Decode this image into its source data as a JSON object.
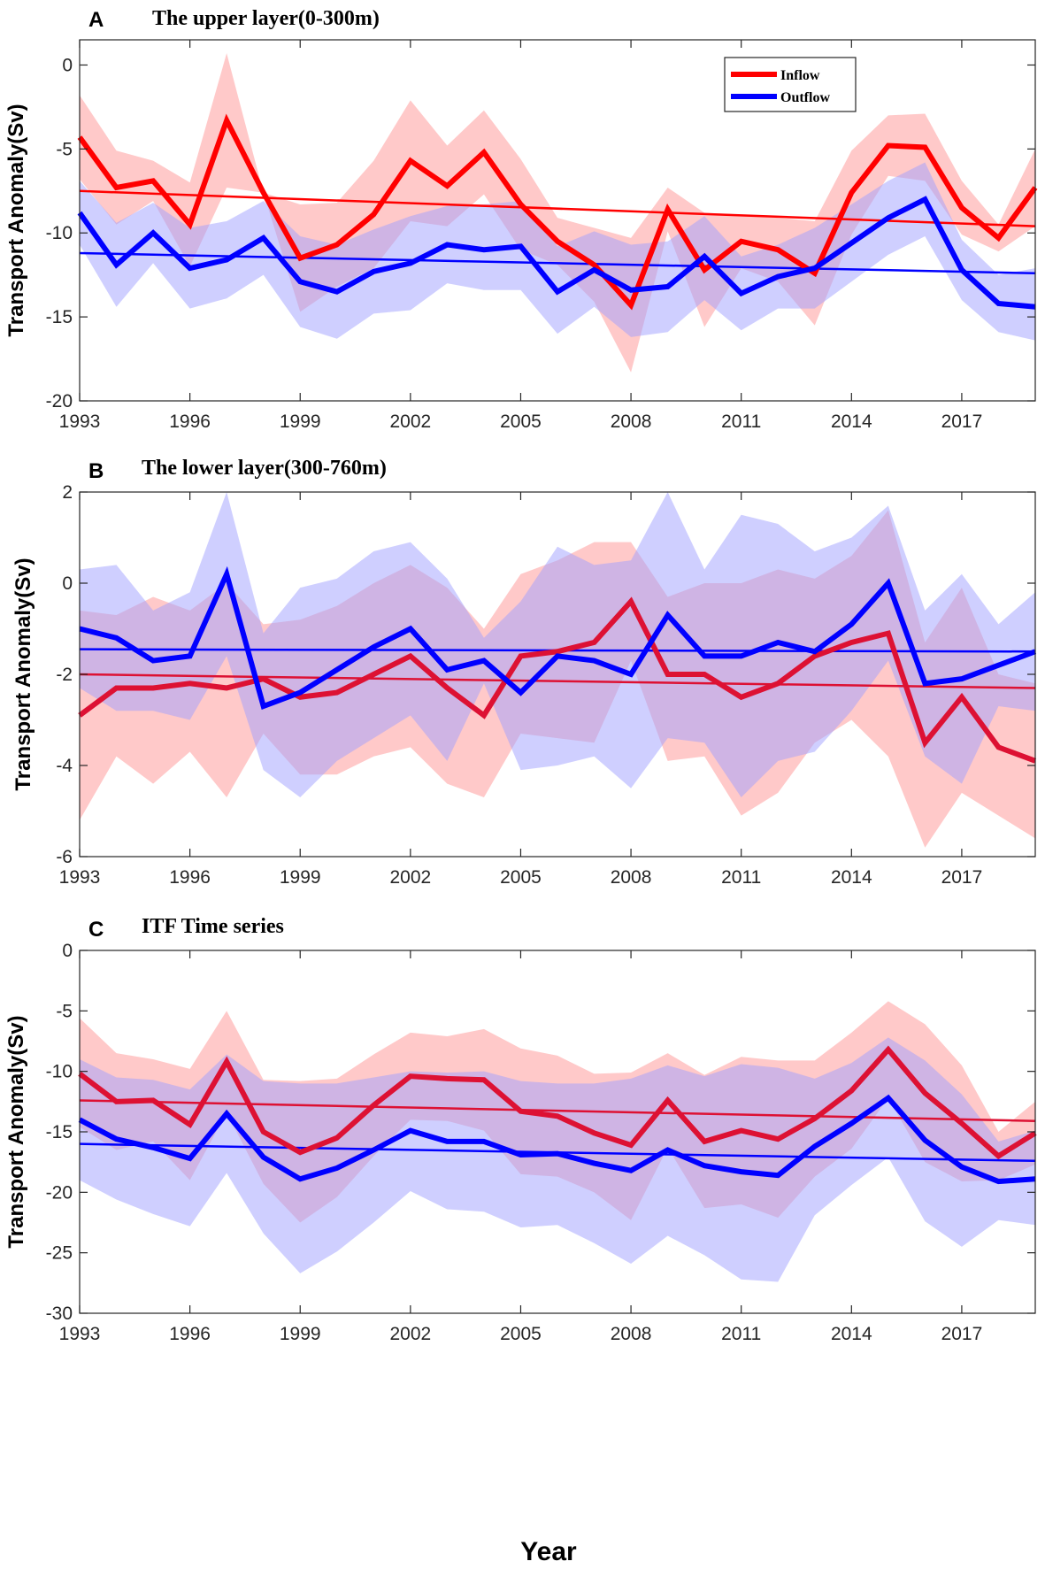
{
  "figure": {
    "xlabel": "Year",
    "colors": {
      "inflow": "#ff0000",
      "outflow": "#0000ff",
      "band_inflow": "#ff9c9c",
      "band_outflow": "#a0a0ff"
    }
  },
  "legend": {
    "inflow": "Inflow",
    "outflow": "Outflow"
  },
  "chart_data": [
    {
      "type": "line",
      "letter": "A",
      "title": "The  upper layer(0-300m)",
      "ylabel": "Transport Anomaly(Sv)",
      "xlim": [
        1993,
        2019
      ],
      "ylim": [
        -20,
        1.5
      ],
      "yticks": [
        0,
        -5,
        -10,
        -15,
        -20
      ],
      "xticks": [
        1993,
        1996,
        1999,
        2002,
        2005,
        2008,
        2011,
        2014,
        2017
      ],
      "x": [
        1993,
        1994,
        1995,
        1996,
        1997,
        1998,
        1999,
        2000,
        2001,
        2002,
        2003,
        2004,
        2005,
        2006,
        2007,
        2008,
        2009,
        2010,
        2011,
        2012,
        2013,
        2014,
        2015,
        2016,
        2017,
        2018,
        2019
      ],
      "series": [
        {
          "name": "Inflow",
          "color": "#ff0000",
          "values": [
            -4.3,
            -7.3,
            -6.9,
            -9.5,
            -3.3,
            -7.6,
            -11.5,
            -10.7,
            -8.9,
            -5.7,
            -7.2,
            -5.2,
            -8.3,
            -10.5,
            -11.9,
            -14.3,
            -8.6,
            -12.2,
            -10.5,
            -11.0,
            -12.4,
            -7.6,
            -4.8,
            -4.9,
            -8.5,
            -10.3,
            -7.3
          ],
          "upper": [
            -1.8,
            -5.1,
            -5.7,
            -7.0,
            0.7,
            -7.6,
            -8.3,
            -8.2,
            -5.7,
            -2.1,
            -4.8,
            -2.7,
            -5.6,
            -9.1,
            -9.7,
            -10.3,
            -7.3,
            -8.8,
            -8.9,
            -9.1,
            -9.3,
            -5.1,
            -3.0,
            -2.9,
            -6.9,
            -9.5,
            -5.0
          ],
          "lower": [
            -6.8,
            -9.5,
            -8.1,
            -12.0,
            -7.3,
            -7.6,
            -14.7,
            -13.2,
            -12.1,
            -9.3,
            -9.6,
            -7.7,
            -11.0,
            -11.9,
            -14.1,
            -18.3,
            -9.9,
            -15.6,
            -12.1,
            -12.9,
            -15.5,
            -10.1,
            -6.6,
            -6.9,
            -10.1,
            -11.1,
            -9.6
          ],
          "trend": [
            -7.5,
            -9.6
          ]
        },
        {
          "name": "Outflow",
          "color": "#0000ff",
          "values": [
            -8.8,
            -11.9,
            -10.0,
            -12.1,
            -11.6,
            -10.3,
            -12.9,
            -13.5,
            -12.3,
            -11.8,
            -10.7,
            -11.0,
            -10.8,
            -13.5,
            -12.2,
            -13.4,
            -13.2,
            -11.4,
            -13.6,
            -12.6,
            -12.1,
            -10.6,
            -9.1,
            -8.0,
            -12.2,
            -14.2,
            -14.4
          ],
          "upper": [
            -6.9,
            -9.4,
            -8.2,
            -9.7,
            -9.3,
            -8.1,
            -10.2,
            -10.7,
            -9.8,
            -9.0,
            -8.4,
            -8.3,
            -8.1,
            -10.8,
            -9.9,
            -10.7,
            -10.5,
            -9.0,
            -11.4,
            -10.7,
            -9.7,
            -8.3,
            -6.9,
            -5.8,
            -10.4,
            -12.5,
            -12.1
          ],
          "lower": [
            -10.7,
            -14.4,
            -11.8,
            -14.5,
            -13.9,
            -12.5,
            -15.6,
            -16.3,
            -14.8,
            -14.6,
            -13.0,
            -13.4,
            -13.4,
            -16.0,
            -14.4,
            -16.2,
            -15.9,
            -14.0,
            -15.8,
            -14.5,
            -14.5,
            -12.9,
            -11.3,
            -10.2,
            -14.0,
            -15.9,
            -16.4
          ],
          "trend": [
            -11.2,
            -12.4
          ]
        }
      ]
    },
    {
      "type": "line",
      "letter": "B",
      "title": "The lower layer(300-760m)",
      "ylabel": "Transport Anomaly(Sv)",
      "xlim": [
        1993,
        2019
      ],
      "ylim": [
        -6,
        2
      ],
      "yticks": [
        2,
        0,
        -2,
        -4,
        -6
      ],
      "xticks": [
        1993,
        1996,
        1999,
        2002,
        2005,
        2008,
        2011,
        2014,
        2017
      ],
      "x": [
        1993,
        1994,
        1995,
        1996,
        1997,
        1998,
        1999,
        2000,
        2001,
        2002,
        2003,
        2004,
        2005,
        2006,
        2007,
        2008,
        2009,
        2010,
        2011,
        2012,
        2013,
        2014,
        2015,
        2016,
        2017,
        2018,
        2019
      ],
      "series": [
        {
          "name": "Inflow",
          "color": "#dd1133",
          "values": [
            -2.9,
            -2.3,
            -2.3,
            -2.2,
            -2.3,
            -2.1,
            -2.5,
            -2.4,
            -2.0,
            -1.6,
            -2.3,
            -2.9,
            -1.6,
            -1.5,
            -1.3,
            -0.4,
            -2.0,
            -2.0,
            -2.5,
            -2.2,
            -1.6,
            -1.3,
            -1.1,
            -3.5,
            -2.5,
            -3.6,
            -3.9
          ],
          "upper": [
            -0.6,
            -0.7,
            -0.3,
            -0.6,
            0.0,
            -0.9,
            -0.8,
            -0.5,
            0.0,
            0.4,
            -0.1,
            -1.0,
            0.2,
            0.5,
            0.9,
            0.9,
            -0.3,
            0.0,
            0.0,
            0.3,
            0.1,
            0.6,
            1.6,
            -1.3,
            -0.1,
            -2.0,
            -2.2
          ],
          "lower": [
            -5.2,
            -3.8,
            -4.4,
            -3.7,
            -4.7,
            -3.3,
            -4.2,
            -4.2,
            -3.8,
            -3.6,
            -4.4,
            -4.7,
            -3.3,
            -3.4,
            -3.5,
            -1.7,
            -3.9,
            -3.8,
            -5.1,
            -4.6,
            -3.5,
            -3.0,
            -3.8,
            -5.8,
            -4.6,
            -5.1,
            -5.6
          ],
          "trend": [
            -2.0,
            -2.3
          ]
        },
        {
          "name": "Outflow",
          "color": "#0000ff",
          "values": [
            -1.0,
            -1.2,
            -1.7,
            -1.6,
            0.2,
            -2.7,
            -2.4,
            -1.9,
            -1.4,
            -1.0,
            -1.9,
            -1.7,
            -2.4,
            -1.6,
            -1.7,
            -2.0,
            -0.7,
            -1.6,
            -1.6,
            -1.3,
            -1.5,
            -0.9,
            0.0,
            -2.2,
            -2.1,
            -1.8,
            -1.5
          ],
          "upper": [
            0.3,
            0.4,
            -0.6,
            -0.2,
            2.0,
            -1.1,
            -0.1,
            0.1,
            0.7,
            0.9,
            0.1,
            -1.2,
            -0.4,
            0.8,
            0.4,
            0.5,
            2.0,
            0.3,
            1.5,
            1.3,
            0.7,
            1.0,
            1.7,
            -0.6,
            0.2,
            -0.9,
            -0.2
          ],
          "lower": [
            -2.3,
            -2.8,
            -2.8,
            -3.0,
            -1.6,
            -4.1,
            -4.7,
            -3.9,
            -3.4,
            -2.9,
            -3.9,
            -2.2,
            -4.1,
            -4.0,
            -3.8,
            -4.5,
            -3.4,
            -3.5,
            -4.7,
            -3.9,
            -3.7,
            -2.8,
            -1.7,
            -3.8,
            -4.4,
            -2.7,
            -2.8
          ],
          "trend": [
            -1.45,
            -1.5
          ]
        }
      ]
    },
    {
      "type": "line",
      "letter": "C",
      "title": "ITF Time series",
      "ylabel": "Transport Anomaly(Sv)",
      "xlim": [
        1993,
        2019
      ],
      "ylim": [
        -30,
        0
      ],
      "yticks": [
        0,
        -5,
        -10,
        -15,
        -20,
        -25,
        -30
      ],
      "xticks": [
        1993,
        1996,
        1999,
        2002,
        2005,
        2008,
        2011,
        2014,
        2017
      ],
      "x": [
        1993,
        1994,
        1995,
        1996,
        1997,
        1998,
        1999,
        2000,
        2001,
        2002,
        2003,
        2004,
        2005,
        2006,
        2007,
        2008,
        2009,
        2010,
        2011,
        2012,
        2013,
        2014,
        2015,
        2016,
        2017,
        2018,
        2019
      ],
      "series": [
        {
          "name": "Inflow",
          "color": "#dd1133",
          "values": [
            -10.2,
            -12.5,
            -12.4,
            -14.4,
            -9.2,
            -15.0,
            -16.7,
            -15.5,
            -12.8,
            -10.4,
            -10.6,
            -10.7,
            -13.3,
            -13.7,
            -15.1,
            -16.1,
            -12.4,
            -15.8,
            -14.9,
            -15.6,
            -13.9,
            -11.6,
            -8.2,
            -11.8,
            -14.3,
            -17.0,
            -15.1
          ],
          "upper": [
            -5.6,
            -8.5,
            -9.0,
            -9.8,
            -5.0,
            -10.7,
            -10.8,
            -10.6,
            -8.6,
            -6.8,
            -7.1,
            -6.5,
            -8.1,
            -8.7,
            -10.2,
            -10.1,
            -8.5,
            -10.3,
            -8.8,
            -9.1,
            -9.1,
            -6.8,
            -4.2,
            -6.1,
            -9.5,
            -15.0,
            -12.5
          ],
          "lower": [
            -14.6,
            -16.5,
            -15.8,
            -19.0,
            -13.4,
            -19.3,
            -22.5,
            -20.4,
            -17.0,
            -14.0,
            -14.1,
            -14.9,
            -18.5,
            -18.7,
            -20.0,
            -22.3,
            -16.3,
            -21.3,
            -21.0,
            -22.1,
            -18.7,
            -16.4,
            -12.2,
            -17.5,
            -19.1,
            -19.0,
            -17.7
          ],
          "trend": [
            -12.4,
            -14.1
          ]
        },
        {
          "name": "Outflow",
          "color": "#0000ff",
          "values": [
            -14.0,
            -15.6,
            -16.3,
            -17.2,
            -13.5,
            -17.1,
            -18.9,
            -18.0,
            -16.5,
            -14.9,
            -15.8,
            -15.8,
            -16.9,
            -16.8,
            -17.6,
            -18.2,
            -16.5,
            -17.8,
            -18.3,
            -18.6,
            -16.2,
            -14.3,
            -12.2,
            -15.7,
            -17.9,
            -19.1,
            -18.9
          ],
          "upper": [
            -9.0,
            -10.5,
            -10.7,
            -11.5,
            -8.6,
            -10.8,
            -11.0,
            -11.0,
            -10.5,
            -10.0,
            -10.1,
            -10.0,
            -10.8,
            -11.0,
            -11.0,
            -10.6,
            -9.5,
            -10.4,
            -9.4,
            -9.7,
            -10.6,
            -9.3,
            -7.2,
            -9.1,
            -11.9,
            -15.8,
            -14.9
          ],
          "lower": [
            -19.0,
            -20.6,
            -21.8,
            -22.8,
            -18.4,
            -23.4,
            -26.7,
            -24.9,
            -22.5,
            -19.9,
            -21.4,
            -21.6,
            -22.9,
            -22.7,
            -24.2,
            -25.9,
            -23.6,
            -25.2,
            -27.2,
            -27.4,
            -21.9,
            -19.4,
            -17.1,
            -22.4,
            -24.5,
            -22.3,
            -22.7
          ],
          "trend": [
            -16.0,
            -17.4
          ]
        }
      ]
    }
  ]
}
